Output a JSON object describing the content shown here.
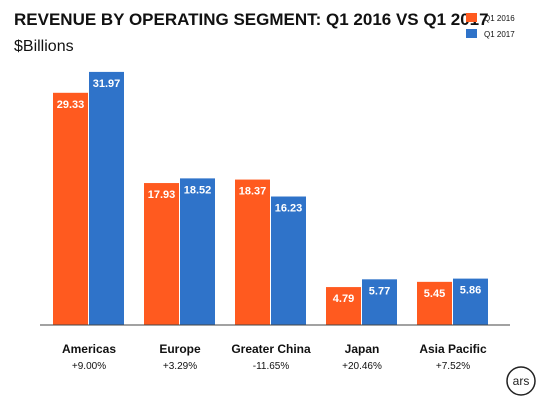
{
  "chart_data": {
    "type": "bar",
    "title": "REVENUE BY OPERATING SEGMENT: Q1 2016 VS Q1 2017",
    "subtitle": "$Billions",
    "categories": [
      "Americas",
      "Europe",
      "Greater China",
      "Japan",
      "Asia Pacific"
    ],
    "changes": [
      "+9.00%",
      "+3.29%",
      "-11.65%",
      "+20.46%",
      "+7.52%"
    ],
    "series": [
      {
        "name": "Q1 2016",
        "color": "#ff5a1f",
        "values": [
          29.33,
          17.93,
          18.37,
          4.79,
          5.45
        ],
        "labels": [
          "29.33",
          "17.93",
          "18.37",
          "4.79",
          "5.45"
        ]
      },
      {
        "name": "Q1 2017",
        "color": "#2f73c9",
        "values": [
          31.97,
          18.52,
          16.23,
          5.77,
          5.86
        ],
        "labels": [
          "31.97",
          "18.52",
          "16.23",
          "5.77",
          "5.86"
        ]
      }
    ],
    "ylim": [
      0,
      36
    ],
    "grid": false,
    "legend": "top-right"
  },
  "watermark": "ars"
}
